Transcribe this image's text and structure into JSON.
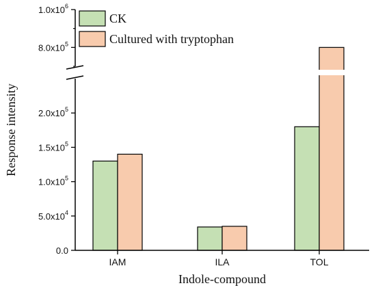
{
  "chart_data": {
    "type": "bar",
    "xlabel": "Indole-compound",
    "ylabel": "Response intensity",
    "categories": [
      "IAM",
      "ILA",
      "TOL"
    ],
    "series": [
      {
        "name": "CK",
        "values": [
          130000,
          34000,
          180000
        ],
        "color": "#c5e0b4"
      },
      {
        "name": "Cultured with tryptophan",
        "values": [
          140000,
          35000,
          800000
        ],
        "color": "#f8cbad"
      }
    ],
    "ylim": [
      0,
      1000000
    ],
    "axis_break": {
      "lower_max": 250000,
      "upper_min": 700000
    },
    "y_ticks_lower": [
      {
        "value": 0,
        "mant": "0.0",
        "exp": ""
      },
      {
        "value": 50000,
        "mant": "5.0x10",
        "exp": "4"
      },
      {
        "value": 100000,
        "mant": "1.0x10",
        "exp": "5"
      },
      {
        "value": 150000,
        "mant": "1.5x10",
        "exp": "5"
      },
      {
        "value": 200000,
        "mant": "2.0x10",
        "exp": "5"
      }
    ],
    "y_ticks_upper": [
      {
        "value": 800000,
        "mant": "8.0x10",
        "exp": "5"
      },
      {
        "value": 1000000,
        "mant": "1.0x10",
        "exp": "6"
      }
    ],
    "legend": {
      "position": "top-left"
    },
    "grid": false
  }
}
